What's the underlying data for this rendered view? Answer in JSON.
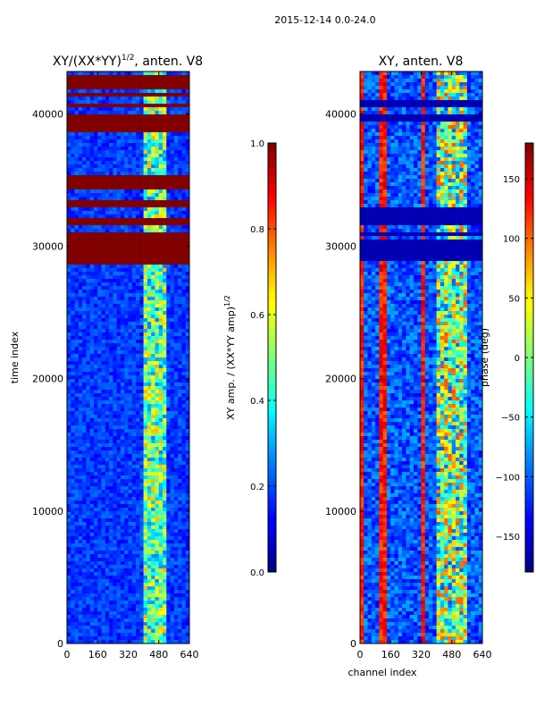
{
  "figure_title": "2015-12-14 0.0-24.0",
  "chart_data": [
    {
      "type": "heatmap",
      "title_main": "XY/(XX*YY)",
      "title_exp": "1/2",
      "title_suffix": ", anten. V8",
      "xlabel": "",
      "ylabel": "time index",
      "xlim": [
        0,
        640
      ],
      "ylim": [
        0,
        43200
      ],
      "xticks": [
        0,
        160,
        320,
        480,
        640
      ],
      "yticks": [
        0,
        10000,
        20000,
        30000,
        40000
      ],
      "colorbar": {
        "label_main": "XY amp. / (XX*YY amp)",
        "label_exp": "1/2",
        "range": [
          0.0,
          1.0
        ],
        "ticks": [
          "0.0",
          "0.2",
          "0.4",
          "0.6",
          "0.8",
          "1.0"
        ],
        "tick_values": [
          0.0,
          0.2,
          0.4,
          0.6,
          0.8,
          1.0
        ]
      },
      "saturated_time_bands": [
        [
          28700,
          31000
        ],
        [
          31700,
          32000
        ],
        [
          33000,
          33400
        ],
        [
          34200,
          35300
        ],
        [
          38600,
          40000
        ],
        [
          40600,
          40900
        ],
        [
          41400,
          41600
        ],
        [
          41800,
          43000
        ]
      ],
      "bright_channel_range": [
        400,
        520
      ],
      "background_level": 0.12
    },
    {
      "type": "heatmap",
      "title": "XY, anten. V8",
      "xlabel": "channel index",
      "ylabel": "",
      "xlim": [
        0,
        640
      ],
      "ylim": [
        0,
        43200
      ],
      "xticks": [
        0,
        160,
        320,
        480,
        640
      ],
      "yticks": [
        0,
        10000,
        20000,
        30000,
        40000
      ],
      "colorbar": {
        "label": "phase (deg)",
        "range": [
          -180,
          180
        ],
        "ticks": [
          "150",
          "100",
          "50",
          "0",
          "−50",
          "−100",
          "−150"
        ],
        "tick_values": [
          150,
          100,
          50,
          0,
          -50,
          -100,
          -150
        ]
      },
      "uniform_time_bands": [
        [
          28800,
          30400
        ],
        [
          30700,
          31000
        ],
        [
          31600,
          33000
        ],
        [
          39300,
          40000
        ],
        [
          40600,
          41100
        ]
      ],
      "red_channel_columns": [
        [
          0,
          20
        ],
        [
          110,
          135
        ],
        [
          320,
          345
        ]
      ],
      "background_phase": -150
    }
  ]
}
